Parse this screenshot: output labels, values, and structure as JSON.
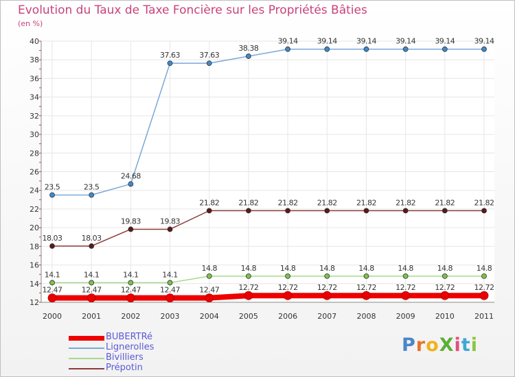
{
  "title": "Evolution du Taux de Taxe Foncière sur les Propriétés Bâties",
  "subtitle": "(en %)",
  "logo": {
    "text": "ProXiti",
    "colors": [
      "#4a86c8",
      "#e8732a",
      "#f0b21c",
      "#5ab035",
      "#e34f7c",
      "#3fa7d6",
      "#8cc63e"
    ]
  },
  "chart_data": {
    "type": "line",
    "title": "Evolution du Taux de Taxe Foncière sur les Propriétés Bâties",
    "ylabel": "(en %)",
    "x": [
      "2000",
      "2001",
      "2002",
      "2003",
      "2004",
      "2005",
      "2006",
      "2007",
      "2008",
      "2009",
      "2010",
      "2011"
    ],
    "ylim": [
      12,
      40
    ],
    "yticks": [
      12,
      14,
      16,
      18,
      20,
      22,
      24,
      26,
      28,
      30,
      32,
      34,
      36,
      38,
      40
    ],
    "grid": true,
    "legend_position": "bottom-left",
    "series": [
      {
        "name": "BUBERTRé",
        "color": "#ee0000",
        "point_color": "#e80000",
        "values": [
          12.47,
          12.47,
          12.47,
          12.47,
          12.47,
          12.72,
          12.72,
          12.72,
          12.72,
          12.72,
          12.72,
          12.72
        ],
        "labels": [
          "12.47",
          "12.47",
          "12.47",
          "12.47",
          "12.47",
          "12.72",
          "12.72",
          "12.72",
          "12.72",
          "12.72",
          "12.72",
          "12.72"
        ]
      },
      {
        "name": "Lignerolles",
        "color": "#7aa7d8",
        "point_color": "#3f89c9",
        "values": [
          23.5,
          23.5,
          24.68,
          37.63,
          37.63,
          38.38,
          39.14,
          39.14,
          39.14,
          39.14,
          39.14,
          39.14
        ],
        "labels": [
          "23.5",
          "23.5",
          "24.68",
          "37.63",
          "37.63",
          "38.38",
          "39.14",
          "39.14",
          "39.14",
          "39.14",
          "39.14",
          "39.14"
        ]
      },
      {
        "name": "Bivilliers",
        "color": "#a6d98a",
        "point_color": "#7cc24a",
        "values": [
          14.1,
          14.1,
          14.1,
          14.1,
          14.8,
          14.8,
          14.8,
          14.8,
          14.8,
          14.8,
          14.8,
          14.8
        ],
        "labels": [
          "14.1",
          "14.1",
          "14.1",
          "14.1",
          "14.8",
          "14.8",
          "14.8",
          "14.8",
          "14.8",
          "14.8",
          "14.8",
          "14.8"
        ]
      },
      {
        "name": "Prépotin",
        "color": "#8a3a3a",
        "point_color": "#5a1a1a",
        "values": [
          18.03,
          18.03,
          19.83,
          19.83,
          21.82,
          21.82,
          21.82,
          21.82,
          21.82,
          21.82,
          21.82,
          21.82
        ],
        "labels": [
          "18.03",
          "18.03",
          "19.83",
          "19.83",
          "21.82",
          "21.82",
          "21.82",
          "21.82",
          "21.82",
          "21.82",
          "21.82",
          "21.82"
        ]
      }
    ]
  }
}
